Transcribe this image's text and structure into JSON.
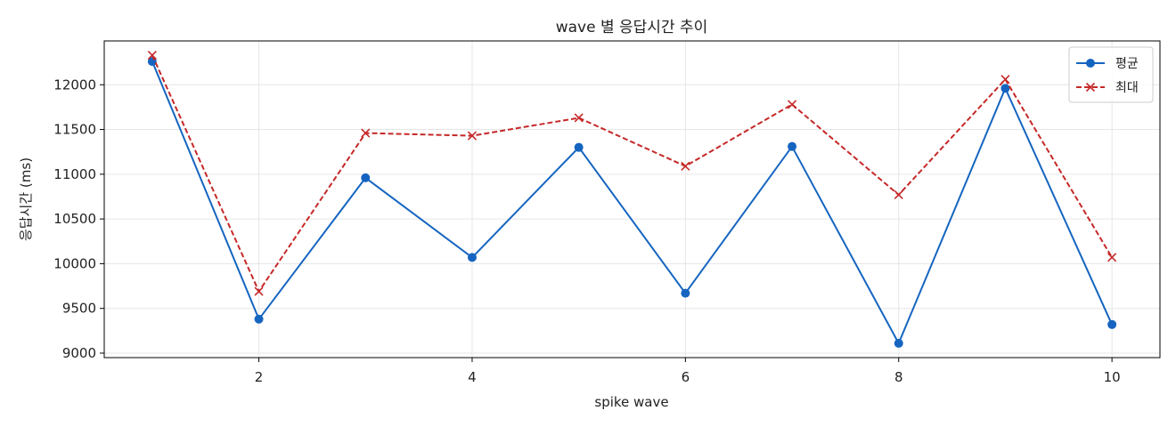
{
  "chart_data": {
    "type": "line",
    "title": "wave 별 응답시간 추이",
    "xlabel": "spike wave",
    "ylabel": "응답시간 (ms)",
    "x": [
      1,
      2,
      3,
      4,
      5,
      6,
      7,
      8,
      9,
      10
    ],
    "xlim": [
      0.55,
      10.45
    ],
    "ylim": [
      8950,
      12490
    ],
    "xticks": [
      2,
      4,
      6,
      8,
      10
    ],
    "yticks": [
      9000,
      9500,
      10000,
      10500,
      11000,
      11500,
      12000
    ],
    "grid": true,
    "legend_position": "top-right",
    "series": [
      {
        "name": "평균",
        "color": "#1565c0",
        "line_style": "solid",
        "marker": "circle",
        "values": [
          12260,
          9380,
          10960,
          10070,
          11300,
          9670,
          11310,
          9110,
          11960,
          9320
        ]
      },
      {
        "name": "최대",
        "color": "#c62828",
        "line_style": "dashed",
        "marker": "x",
        "values": [
          12330,
          9690,
          11460,
          11430,
          11630,
          11090,
          11780,
          10770,
          12060,
          10070
        ]
      }
    ]
  }
}
